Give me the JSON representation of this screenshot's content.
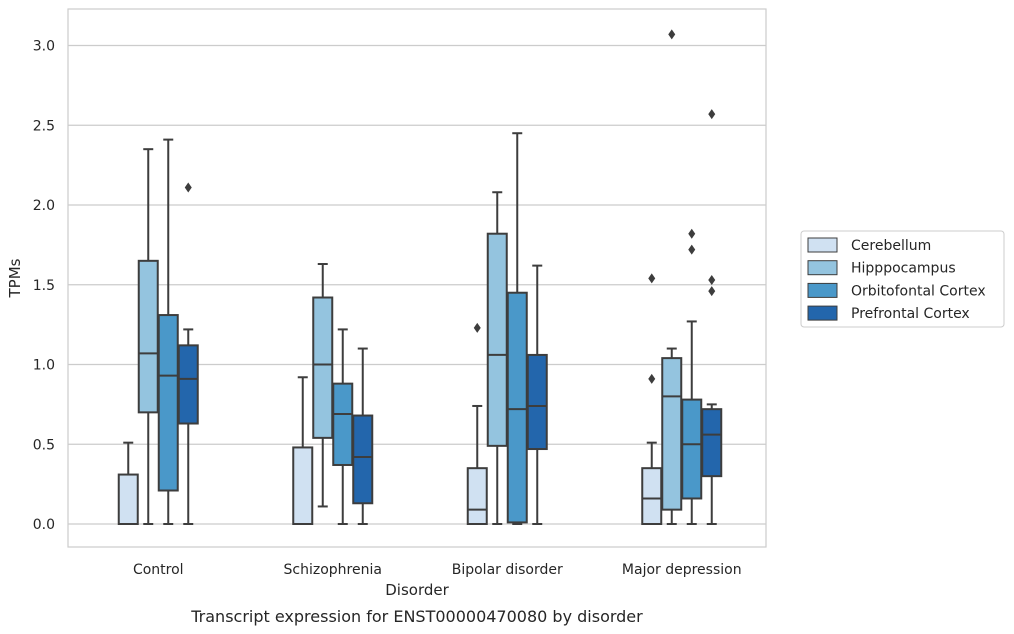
{
  "chart_data": {
    "type": "box",
    "title": "",
    "caption": "Transcript expression for ENST00000470080 by disorder",
    "xlabel": "Disorder",
    "ylabel": "TPMs",
    "ylim": [
      -0.15,
      3.23
    ],
    "yticks": [
      "0.0",
      "0.5",
      "1.0",
      "1.5",
      "2.0",
      "2.5",
      "3.0"
    ],
    "grid": "horizontal",
    "legend_position": "right",
    "categories": [
      "Control",
      "Schizophrenia",
      "Bipolar disorder",
      "Major depression"
    ],
    "series": [
      {
        "name": "Cerebellum",
        "color": "#d0e1f2",
        "boxes": [
          {
            "whislo": 0.0,
            "q1": 0.0,
            "med": 0.0,
            "q3": 0.31,
            "whishi": 0.51,
            "fliers": []
          },
          {
            "whislo": 0.0,
            "q1": 0.0,
            "med": 0.0,
            "q3": 0.48,
            "whishi": 0.92,
            "fliers": []
          },
          {
            "whislo": 0.0,
            "q1": 0.0,
            "med": 0.09,
            "q3": 0.35,
            "whishi": 0.74,
            "fliers": [
              1.23
            ]
          },
          {
            "whislo": 0.0,
            "q1": 0.0,
            "med": 0.16,
            "q3": 0.35,
            "whishi": 0.51,
            "fliers": [
              0.91,
              1.54
            ]
          }
        ]
      },
      {
        "name": "Hipppocampus",
        "color": "#94c4df",
        "boxes": [
          {
            "whislo": 0.0,
            "q1": 0.7,
            "med": 1.07,
            "q3": 1.65,
            "whishi": 2.35,
            "fliers": []
          },
          {
            "whislo": 0.11,
            "q1": 0.54,
            "med": 1.0,
            "q3": 1.42,
            "whishi": 1.63,
            "fliers": []
          },
          {
            "whislo": 0.0,
            "q1": 0.49,
            "med": 1.06,
            "q3": 1.82,
            "whishi": 2.08,
            "fliers": []
          },
          {
            "whislo": 0.0,
            "q1": 0.09,
            "med": 0.8,
            "q3": 1.04,
            "whishi": 1.1,
            "fliers": [
              3.07
            ]
          }
        ]
      },
      {
        "name": "Orbitofontal Cortex",
        "color": "#4a98c9",
        "boxes": [
          {
            "whislo": 0.0,
            "q1": 0.21,
            "med": 0.93,
            "q3": 1.31,
            "whishi": 2.41,
            "fliers": []
          },
          {
            "whislo": 0.0,
            "q1": 0.37,
            "med": 0.69,
            "q3": 0.88,
            "whishi": 1.22,
            "fliers": []
          },
          {
            "whislo": 0.0,
            "q1": 0.01,
            "med": 0.72,
            "q3": 1.45,
            "whishi": 2.45,
            "fliers": []
          },
          {
            "whislo": 0.0,
            "q1": 0.16,
            "med": 0.5,
            "q3": 0.78,
            "whishi": 1.27,
            "fliers": [
              1.72,
              1.82
            ]
          }
        ]
      },
      {
        "name": "Prefrontal Cortex",
        "color": "#2366ac",
        "boxes": [
          {
            "whislo": 0.0,
            "q1": 0.63,
            "med": 0.91,
            "q3": 1.12,
            "whishi": 1.22,
            "fliers": [
              2.11
            ]
          },
          {
            "whislo": 0.0,
            "q1": 0.13,
            "med": 0.42,
            "q3": 0.68,
            "whishi": 1.1,
            "fliers": []
          },
          {
            "whislo": 0.0,
            "q1": 0.47,
            "med": 0.74,
            "q3": 1.06,
            "whishi": 1.62,
            "fliers": []
          },
          {
            "whislo": 0.0,
            "q1": 0.3,
            "med": 0.56,
            "q3": 0.72,
            "whishi": 0.75,
            "fliers": [
              1.46,
              1.53,
              2.57
            ]
          }
        ]
      }
    ]
  }
}
